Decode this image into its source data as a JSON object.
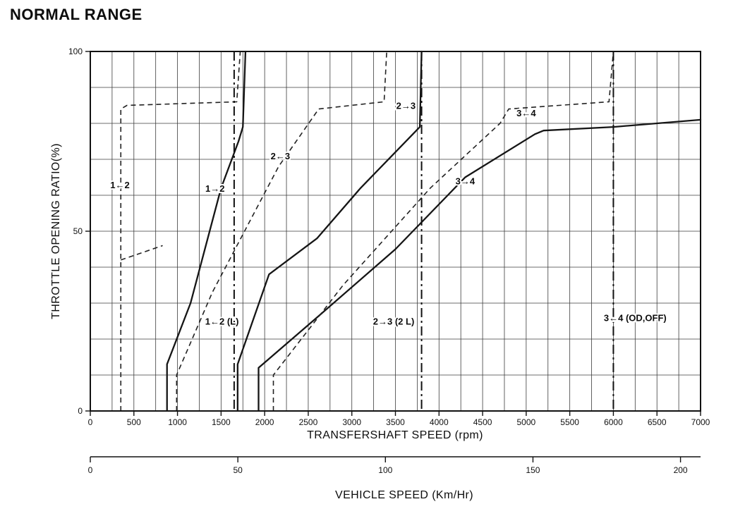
{
  "page": {
    "title": "NORMAL RANGE"
  },
  "chart_data": {
    "type": "line",
    "title": "NORMAL RANGE",
    "xlabel": "TRANSFERSHAFT SPEED (rpm)",
    "x2label": "VEHICLE SPEED (Km/Hr)",
    "ylabel": "THROTTLE OPENING RATIO(%)",
    "xlim": [
      0,
      7000
    ],
    "ylim": [
      0,
      100
    ],
    "x2lim": [
      0,
      200
    ],
    "x_ticks": [
      0,
      500,
      1000,
      1500,
      2000,
      2500,
      3000,
      3500,
      4000,
      4500,
      5000,
      5500,
      6000,
      6500,
      7000
    ],
    "y_ticks": [
      0,
      50,
      100
    ],
    "x2_ticks": [
      0,
      50,
      100,
      150,
      200
    ],
    "x2_rpm_per_unit": 33.85,
    "grid": {
      "on": true,
      "x_step": 250,
      "y_step": 10
    },
    "legend_position": "none",
    "series": [
      {
        "name": "shift-1-2-upshift",
        "label": "1→2",
        "style": "solid",
        "label_at": [
          1430,
          61
        ],
        "segments": [
          [
            [
              880,
              0
            ],
            [
              880,
              13
            ],
            [
              1150,
              30
            ],
            [
              1500,
              62
            ],
            [
              1700,
              75
            ],
            [
              1750,
              79
            ],
            [
              1780,
              100
            ]
          ]
        ]
      },
      {
        "name": "shift-2-3-upshift",
        "label": "2→3",
        "style": "solid",
        "label_at": [
          3620,
          84
        ],
        "segments": [
          [
            [
              1690,
              0
            ],
            [
              1690,
              13
            ],
            [
              2050,
              38
            ],
            [
              2600,
              48
            ],
            [
              3100,
              62
            ],
            [
              3780,
              79
            ],
            [
              3800,
              100
            ]
          ]
        ]
      },
      {
        "name": "shift-3-4-upshift",
        "label": "3→4",
        "style": "solid",
        "label_at": [
          4300,
          63
        ],
        "segments": [
          [
            [
              1930,
              0
            ],
            [
              1930,
              12
            ],
            [
              2600,
              26
            ],
            [
              3500,
              45
            ],
            [
              4300,
              65
            ],
            [
              5100,
              77
            ],
            [
              5200,
              78
            ],
            [
              6000,
              79
            ],
            [
              7000,
              81
            ]
          ]
        ]
      },
      {
        "name": "shift-2-1-downshift",
        "label": "1←2",
        "style": "dashed",
        "label_at": [
          340,
          62
        ],
        "segments": [
          [
            [
              350,
              0
            ],
            [
              350,
              84
            ],
            [
              420,
              85
            ],
            [
              1680,
              86
            ],
            [
              1720,
              100
            ]
          ],
          [
            [
              350,
              42
            ],
            [
              830,
              46
            ]
          ]
        ]
      },
      {
        "name": "shift-3-2-downshift",
        "label": "2←3",
        "style": "dashed",
        "label_at": [
          2180,
          70
        ],
        "segments": [
          [
            [
              990,
              0
            ],
            [
              990,
              10
            ],
            [
              1400,
              33
            ],
            [
              2160,
              68
            ],
            [
              2620,
              84
            ],
            [
              3370,
              86
            ],
            [
              3400,
              100
            ]
          ]
        ]
      },
      {
        "name": "shift-4-3-downshift",
        "label": "3←4",
        "style": "dashed",
        "label_at": [
          5000,
          82
        ],
        "segments": [
          [
            [
              2100,
              0
            ],
            [
              2100,
              10
            ],
            [
              2900,
              35
            ],
            [
              3900,
              62
            ],
            [
              4700,
              80
            ],
            [
              4800,
              84
            ],
            [
              5950,
              86
            ],
            [
              6000,
              100
            ]
          ]
        ]
      }
    ],
    "vlines": [
      {
        "name": "shift-2-1-low-range",
        "label": "1←2 (L)",
        "rpm": 1650,
        "label_at": [
          1510,
          24
        ]
      },
      {
        "name": "shift-2-3-second-low",
        "label": "2→3 (2 L)",
        "rpm": 3800,
        "label_at": [
          3480,
          24
        ]
      },
      {
        "name": "shift-4-3-od-off",
        "label": "3←4 (OD,OFF)",
        "rpm": 6000,
        "label_at": [
          6250,
          25
        ]
      }
    ]
  }
}
